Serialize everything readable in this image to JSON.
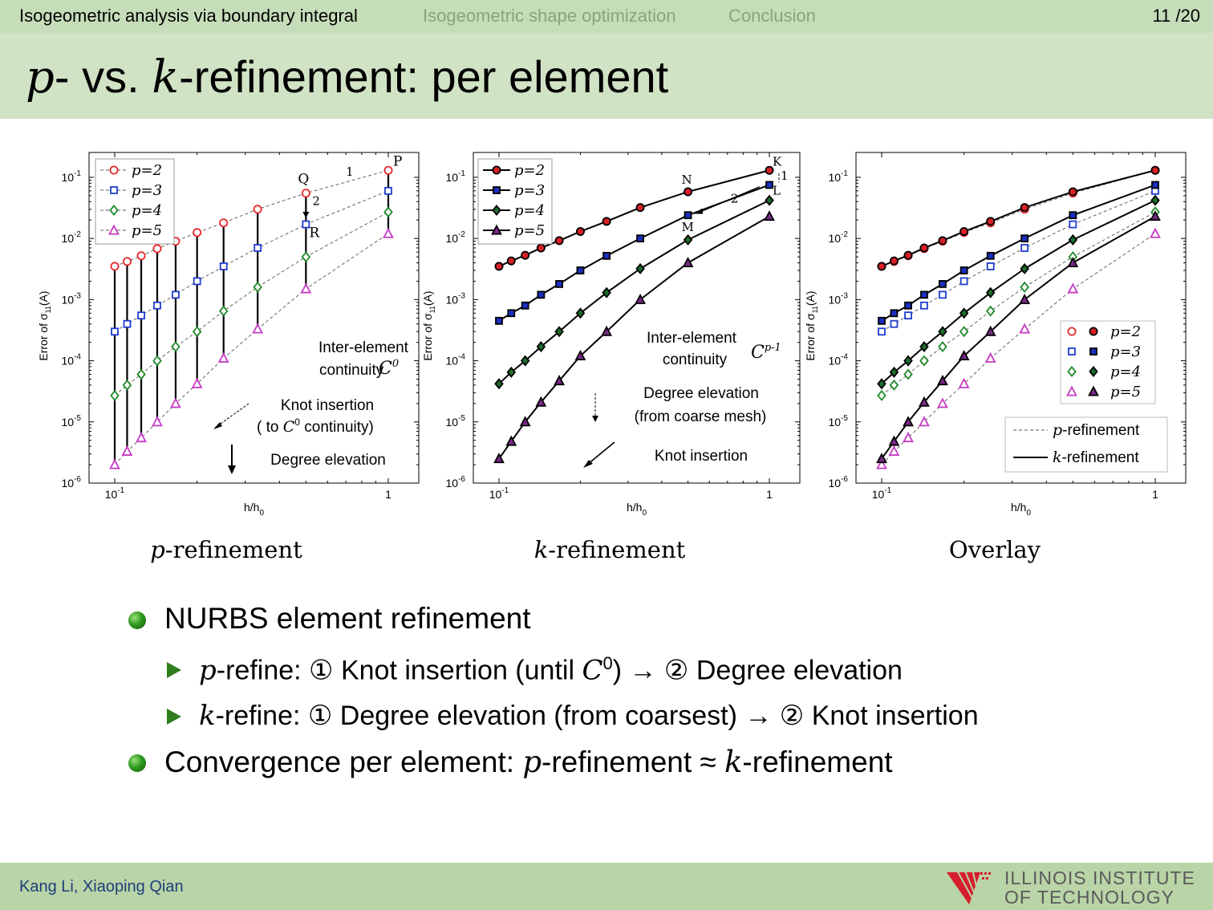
{
  "nav": {
    "sections": [
      "Isogeometric analysis via boundary integral",
      "Isogeometric shape optimization",
      "Conclusion"
    ],
    "page": "11 /20"
  },
  "title": {
    "p": "p",
    "a": "- vs. ",
    "k": "k",
    "b": "-refinement: per element"
  },
  "captions": {
    "c1": "p",
    "c1b": "-refinement",
    "c2": "k",
    "c2b": "-refinement",
    "c3": "Overlay"
  },
  "bullets": {
    "b1": "NURBS element refinement",
    "b2": {
      "var": "p",
      "pre": "-refine: ① Knot insertion (until ",
      "c0": "C",
      "sup": "0",
      "post": ") → ② Degree elevation"
    },
    "b3": {
      "var": "k",
      "text": "-refine: ① Degree elevation (from coarsest) → ② Knot insertion"
    },
    "b4": {
      "pre": "Convergence per element: ",
      "p": "p",
      "mid": "-refinement ≈ ",
      "k": "k",
      "post": "-refinement"
    }
  },
  "footer": {
    "authors": "Kang Li, Xiaoping Qian",
    "logo_line1": "ILLINOIS INSTITUTE",
    "logo_line2": "OF TECHNOLOGY"
  },
  "colors": {
    "p2": "#e8262b",
    "p3": "#1f3ccf",
    "p4": "#1f8a2a",
    "p5": "#c63ac4",
    "k2": "#d81f26",
    "k3": "#1a2fbf",
    "k4": "#1d6b2e",
    "k5": "#7a2a88"
  },
  "chart_data": [
    {
      "type": "scatter",
      "title": "p-refinement",
      "xlabel": "h/h0",
      "ylabel": "Error of σ11(A)",
      "xscale": "log",
      "yscale": "log",
      "xlim": [
        0.08,
        1.15
      ],
      "ylim": [
        1e-06,
        0.2
      ],
      "xticks": [
        "10-1",
        "1"
      ],
      "yticks": [
        "10-1",
        "10-2",
        "10-3",
        "10-4",
        "10-5",
        "10-6"
      ],
      "x": [
        0.1,
        0.111,
        0.125,
        0.143,
        0.167,
        0.2,
        0.25,
        0.333,
        0.5,
        1
      ],
      "series": [
        {
          "name": "p=2",
          "values": [
            0.0035,
            0.0042,
            0.0052,
            0.0068,
            0.009,
            0.0125,
            0.018,
            0.03,
            0.055,
            0.13
          ]
        },
        {
          "name": "p=3",
          "values": [
            0.0003,
            0.0004,
            0.00055,
            0.0008,
            0.0012,
            0.002,
            0.0035,
            0.007,
            0.017,
            0.06
          ]
        },
        {
          "name": "p=4",
          "values": [
            2.7e-05,
            4e-05,
            6e-05,
            0.0001,
            0.00017,
            0.0003,
            0.00065,
            0.0016,
            0.005,
            0.027
          ]
        },
        {
          "name": "p=5",
          "values": [
            2e-06,
            3.3e-06,
            5.5e-06,
            1e-05,
            2e-05,
            4.2e-05,
            0.00011,
            0.00033,
            0.0015,
            0.012
          ]
        }
      ],
      "point_labels": [
        "P",
        "Q",
        "R"
      ],
      "slope_labels": [
        "1",
        "2"
      ],
      "annotations": [
        "Inter-element",
        "continuity",
        "Knot insertion",
        "( to",
        "continuity)",
        "Degree elevation"
      ],
      "legend": "top-left"
    },
    {
      "type": "line",
      "title": "k-refinement",
      "xlabel": "h/h0",
      "ylabel": "Error of σ11(A)",
      "xscale": "log",
      "yscale": "log",
      "xlim": [
        0.08,
        1.15
      ],
      "ylim": [
        1e-06,
        0.2
      ],
      "xticks": [
        "10-1",
        "1"
      ],
      "yticks": [
        "10-1",
        "10-2",
        "10-3",
        "10-4",
        "10-5",
        "10-6"
      ],
      "x": [
        0.1,
        0.111,
        0.125,
        0.143,
        0.167,
        0.2,
        0.25,
        0.333,
        0.5,
        1
      ],
      "series": [
        {
          "name": "p=2",
          "values": [
            0.0035,
            0.0043,
            0.0053,
            0.007,
            0.0092,
            0.013,
            0.019,
            0.032,
            0.058,
            0.13
          ]
        },
        {
          "name": "p=3",
          "values": [
            0.00045,
            0.0006,
            0.0008,
            0.0012,
            0.0018,
            0.003,
            0.0052,
            0.01,
            0.024,
            0.075
          ]
        },
        {
          "name": "p=4",
          "values": [
            4.2e-05,
            6.5e-05,
            0.0001,
            0.00017,
            0.0003,
            0.0006,
            0.0013,
            0.0032,
            0.0095,
            0.042
          ]
        },
        {
          "name": "p=5",
          "values": [
            2.5e-06,
            4.8e-06,
            1e-05,
            2.1e-05,
            4.7e-05,
            0.00012,
            0.0003,
            0.001,
            0.004,
            0.023
          ]
        }
      ],
      "point_labels": [
        "K",
        "L",
        "M",
        "N"
      ],
      "slope_labels": [
        "1",
        "2"
      ],
      "annotations": [
        "Inter-element",
        "continuity",
        "Degree elevation",
        "(from coarse mesh)",
        "Knot insertion"
      ],
      "legend": "top-left"
    },
    {
      "type": "line",
      "title": "Overlay",
      "xlabel": "h/h0",
      "ylabel": "Error of σ11(A)",
      "xscale": "log",
      "yscale": "log",
      "xlim": [
        0.08,
        1.15
      ],
      "ylim": [
        1e-06,
        0.2
      ],
      "xticks": [
        "10-1",
        "1"
      ],
      "yticks": [
        "10-1",
        "10-2",
        "10-3",
        "10-4",
        "10-5",
        "10-6"
      ],
      "series_ref": "p-refinement (dashed, open markers) and k-refinement (solid, filled markers) series from the two charts above",
      "legend_entries": [
        "p=2",
        "p=3",
        "p=4",
        "p=5",
        "p-refinement",
        "k-refinement"
      ],
      "legend": "bottom-right"
    }
  ]
}
